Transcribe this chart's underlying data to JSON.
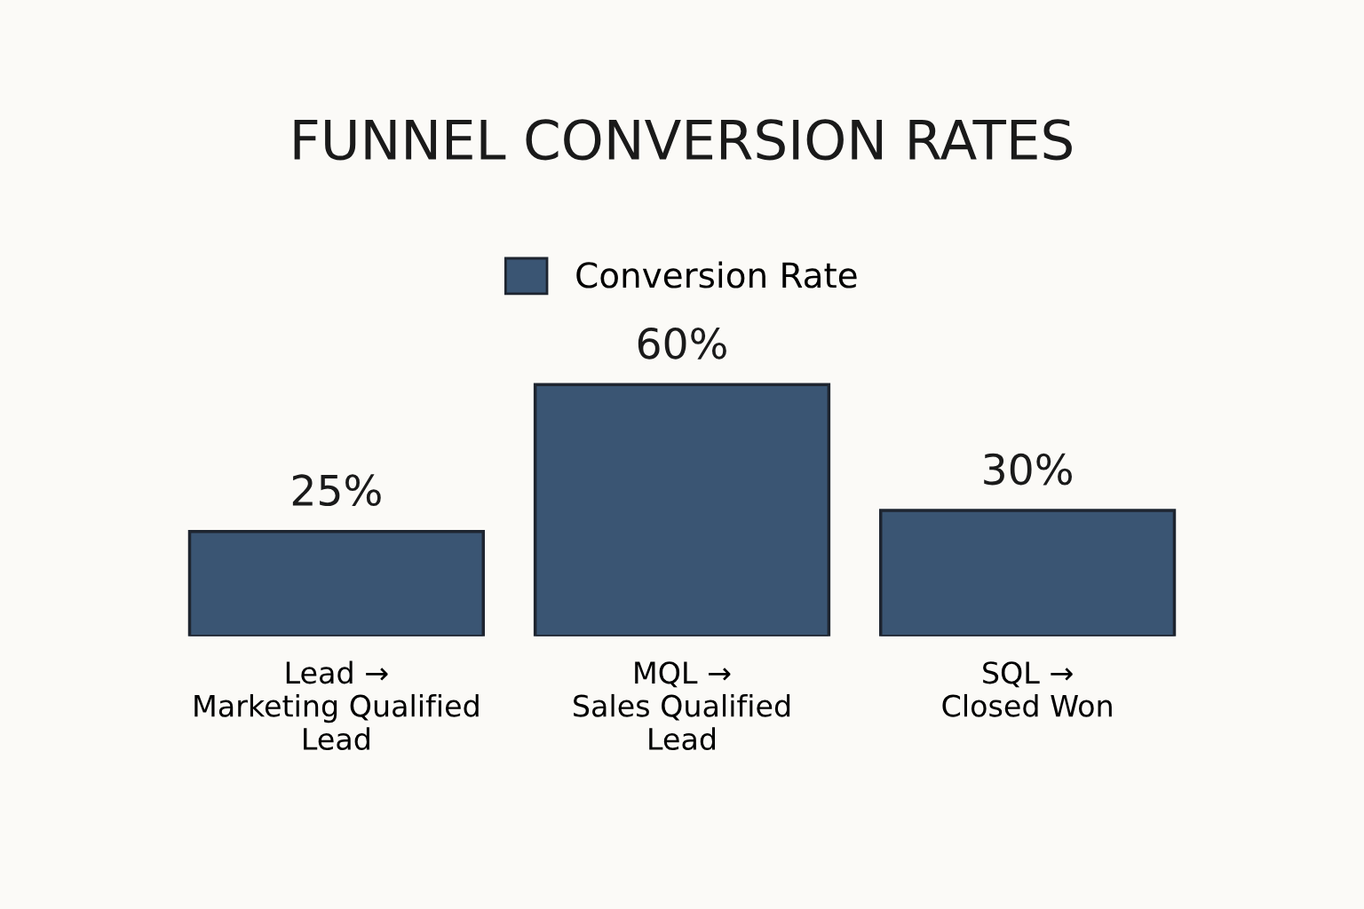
{
  "chart_data": {
    "type": "bar",
    "title": "FUNNEL CONVERSION RATES",
    "categories": [
      "Lead →\nMarketing Qualified\nLead",
      "MQL →\nSales Qualified\nLead",
      "SQL →\nClosed Won"
    ],
    "series": [
      {
        "name": "Conversion Rate",
        "color": "#3a5573",
        "values": [
          25,
          60,
          30
        ],
        "value_labels": [
          "25%",
          "60%",
          "30%"
        ]
      }
    ],
    "legend": "top",
    "grid": false
  }
}
